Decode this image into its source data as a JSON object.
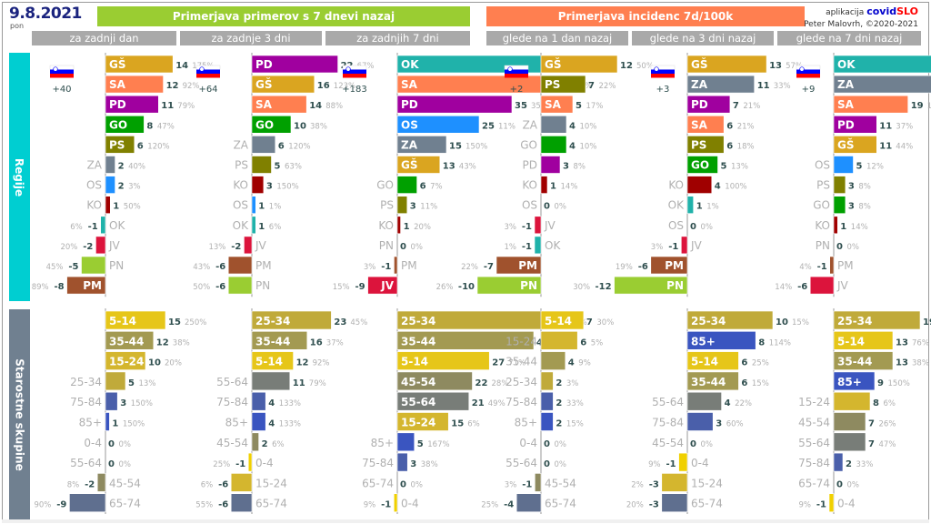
{
  "header": {
    "date": "9.8.2021",
    "day": "pon",
    "title_cases": "Primerjava primerov s 7 dnevi nazaj",
    "title_incidence": "Primerjava incidenc 7d/100k",
    "app_prefix": "aplikacija",
    "app_name_part1": "covid",
    "app_name_part2": "SLO",
    "author": "Peter Malovrh, ©2020-2021",
    "columns": [
      "za zadnji dan",
      "za zadnje 3 dni",
      "za zadnjih 7 dni",
      "glede na 1 dan nazaj",
      "glede na 3 dni nazaj",
      "glede na 7 dni nazaj"
    ]
  },
  "sections": {
    "regions_label": "Regije",
    "ages_label": "Starostne skupine"
  },
  "colors": {
    "GŠ": "#daa520",
    "SA": "#ff7f50",
    "PD": "#a0009f",
    "GO": "#00a000",
    "PS": "#808000",
    "ZA": "#708090",
    "OS": "#1e90ff",
    "KO": "#a00000",
    "OK": "#20b2aa",
    "JV": "#dc143c",
    "PN": "#9acd32",
    "PM": "#a0522d",
    "5-14": "#e6c619",
    "15-24": "#d4b62e",
    "25-34": "#c0aa3a",
    "35-44": "#a39a52",
    "45-54": "#8e8a60",
    "55-64": "#787d78",
    "65-74": "#5f6f8f",
    "75-84": "#4a5faa",
    "85+": "#3a55c0",
    "0-4": "#f0d000"
  },
  "chart_data": [
    {
      "type": "bar",
      "orientation": "horizontal",
      "group": "regions",
      "column": "za zadnji dan",
      "total_change": "+40",
      "categories": [
        "GŠ",
        "SA",
        "PD",
        "GO",
        "PS",
        "ZA",
        "OS",
        "KO",
        "OK",
        "JV",
        "PN",
        "PM"
      ],
      "values": [
        14,
        12,
        11,
        8,
        6,
        2,
        2,
        1,
        -1,
        -2,
        -5,
        -8
      ],
      "percents": [
        "175%",
        "92%",
        "79%",
        "47%",
        "120%",
        "40%",
        "3%",
        "50%",
        "6%",
        "20%",
        "45%",
        "89%"
      ]
    },
    {
      "type": "bar",
      "orientation": "horizontal",
      "group": "regions",
      "column": "za zadnje 3 dni",
      "total_change": "+64",
      "categories": [
        "PD",
        "GŠ",
        "SA",
        "GO",
        "ZA",
        "PS",
        "KO",
        "OS",
        "OK",
        "JV",
        "PM",
        "PN"
      ],
      "values": [
        22,
        16,
        14,
        10,
        6,
        5,
        3,
        1,
        1,
        -2,
        -6,
        -6
      ],
      "percents": [
        "67%",
        "123%",
        "88%",
        "38%",
        "120%",
        "63%",
        "150%",
        "1%",
        "6%",
        "13%",
        "43%",
        "50%"
      ]
    },
    {
      "type": "bar",
      "orientation": "horizontal",
      "group": "regions",
      "column": "za zadnjih 7 dni",
      "total_change": "+183",
      "categories": [
        "OK",
        "SA",
        "PD",
        "OS",
        "ZA",
        "GŠ",
        "GO",
        "PS",
        "KO",
        "PN",
        "PM",
        "JV"
      ],
      "values": [
        48,
        47,
        35,
        25,
        15,
        13,
        6,
        3,
        1,
        0,
        -1,
        -9
      ],
      "percents": [
        "102%",
        "118%",
        "35%",
        "11%",
        "150%",
        "43%",
        "7%",
        "11%",
        "20%",
        "0%",
        "3%",
        "15%"
      ]
    },
    {
      "type": "bar",
      "orientation": "horizontal",
      "group": "regions",
      "column": "glede na 1 dan nazaj",
      "total_change": "+2",
      "categories": [
        "GŠ",
        "PS",
        "SA",
        "ZA",
        "GO",
        "PD",
        "KO",
        "OS",
        "JV",
        "OK",
        "PM",
        "PN"
      ],
      "values": [
        12,
        7,
        5,
        4,
        4,
        3,
        1,
        0,
        -1,
        -1,
        -7,
        -10
      ],
      "percents": [
        "50%",
        "22%",
        "17%",
        "10%",
        "10%",
        "8%",
        "14%",
        "0%",
        "3%",
        "1%",
        "22%",
        "26%"
      ]
    },
    {
      "type": "bar",
      "orientation": "horizontal",
      "group": "regions",
      "column": "glede na 3 dni nazaj",
      "total_change": "+3",
      "categories": [
        "GŠ",
        "ZA",
        "PD",
        "SA",
        "PS",
        "GO",
        "KO",
        "OK",
        "OS",
        "JV",
        "PM",
        "PN"
      ],
      "values": [
        13,
        11,
        7,
        6,
        6,
        5,
        4,
        1,
        0,
        -1,
        -6,
        -12
      ],
      "percents": [
        "57%",
        "33%",
        "21%",
        "21%",
        "18%",
        "13%",
        "100%",
        "1%",
        "0%",
        "3%",
        "19%",
        "30%"
      ]
    },
    {
      "type": "bar",
      "orientation": "horizontal",
      "group": "regions",
      "column": "glede na 7 dni nazaj",
      "total_change": "+9",
      "categories": [
        "OK",
        "ZA",
        "SA",
        "PD",
        "GŠ",
        "OS",
        "PS",
        "GO",
        "KO",
        "PN",
        "PM",
        "JV"
      ],
      "values": [
        41,
        27,
        19,
        11,
        11,
        5,
        3,
        3,
        1,
        0,
        -1,
        -6
      ],
      "percents": [
        "103%",
        "159%",
        "127%",
        "37%",
        "44%",
        "12%",
        "8%",
        "8%",
        "14%",
        "0%",
        "4%",
        "14%"
      ]
    },
    {
      "type": "bar",
      "orientation": "horizontal",
      "group": "ages",
      "column": "za zadnji dan",
      "categories": [
        "5-14",
        "35-44",
        "15-24",
        "25-34",
        "75-84",
        "85+",
        "0-4",
        "55-64",
        "45-54",
        "65-74"
      ],
      "values": [
        15,
        12,
        10,
        5,
        3,
        1,
        0,
        0,
        -2,
        -9
      ],
      "percents": [
        "250%",
        "38%",
        "20%",
        "13%",
        "150%",
        "150%",
        "0%",
        "0%",
        "8%",
        "90%"
      ]
    },
    {
      "type": "bar",
      "orientation": "horizontal",
      "group": "ages",
      "column": "za zadnje 3 dni",
      "categories": [
        "25-34",
        "35-44",
        "5-14",
        "55-64",
        "75-84",
        "85+",
        "45-54",
        "0-4",
        "15-24",
        "65-74"
      ],
      "values": [
        23,
        16,
        12,
        11,
        4,
        4,
        2,
        -1,
        -6,
        -6
      ],
      "percents": [
        "45%",
        "37%",
        "92%",
        "79%",
        "133%",
        "133%",
        "6%",
        "25%",
        "6%",
        "55%"
      ]
    },
    {
      "type": "bar",
      "orientation": "horizontal",
      "group": "ages",
      "column": "za zadnjih 7 dni",
      "categories": [
        "25-34",
        "35-44",
        "5-14",
        "45-54",
        "55-64",
        "15-24",
        "85+",
        "75-84",
        "65-74",
        "0-4"
      ],
      "values": [
        45,
        40,
        27,
        22,
        21,
        15,
        5,
        3,
        0,
        -1
      ],
      "percents": [
        "31%",
        "39%",
        "71%",
        "28%",
        "49%",
        "6%",
        "167%",
        "38%",
        "0%",
        "9%"
      ]
    },
    {
      "type": "bar",
      "orientation": "horizontal",
      "group": "ages",
      "column": "glede na 1 dan nazaj",
      "categories": [
        "5-14",
        "15-24",
        "35-44",
        "25-34",
        "75-84",
        "85+",
        "0-4",
        "55-64",
        "45-54",
        "65-74"
      ],
      "values": [
        7,
        6,
        4,
        2,
        2,
        2,
        0,
        0,
        -1,
        -4
      ],
      "percents": [
        "30%",
        "5%",
        "9%",
        "3%",
        "33%",
        "15%",
        "0%",
        "0%",
        "3%",
        "25%"
      ]
    },
    {
      "type": "bar",
      "orientation": "horizontal",
      "group": "ages",
      "column": "glede na 3 dni nazaj",
      "categories": [
        "25-34",
        "85+",
        "5-14",
        "35-44",
        "55-64",
        "75-84",
        "45-54",
        "0-4",
        "15-24",
        "65-74"
      ],
      "values": [
        10,
        8,
        6,
        6,
        4,
        3,
        0,
        -1,
        -3,
        -3
      ],
      "percents": [
        "15%",
        "114%",
        "25%",
        "15%",
        "22%",
        "60%",
        "0%",
        "9%",
        "2%",
        "20%"
      ]
    },
    {
      "type": "bar",
      "orientation": "horizontal",
      "group": "ages",
      "column": "glede na 7 dni nazaj",
      "categories": [
        "25-34",
        "5-14",
        "35-44",
        "85+",
        "15-24",
        "45-54",
        "55-64",
        "75-84",
        "65-74",
        "0-4"
      ],
      "values": [
        19,
        13,
        13,
        9,
        8,
        7,
        7,
        2,
        0,
        -1
      ],
      "percents": [
        "33%",
        "76%",
        "38%",
        "150%",
        "6%",
        "26%",
        "47%",
        "33%",
        "0%",
        "9%"
      ]
    }
  ]
}
